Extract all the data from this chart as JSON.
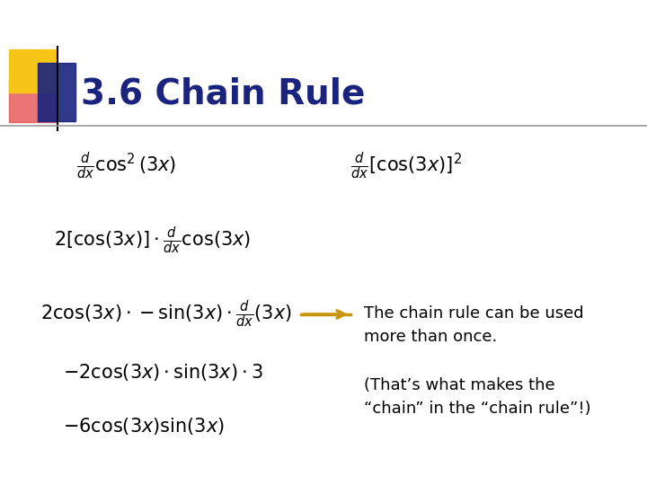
{
  "title": "3.6 Chain Rule",
  "title_color": "#1a237e",
  "title_fontsize": 28,
  "bg_color": "#ffffff",
  "eq1": "$\\frac{d}{dx}\\cos^2(3x)$",
  "eq2": "$\\frac{d}{dx}\\left[\\cos(3x)\\right]^2$",
  "eq3": "$2\\left[\\cos(3x)\\right]\\cdot\\frac{d}{dx}\\cos(3x)$",
  "eq4": "$2\\cos(3x)\\cdot-\\sin(3x)\\cdot\\frac{d}{dx}(3x)$",
  "eq5": "$-2\\cos(3x)\\cdot\\sin(3x)\\cdot 3$",
  "eq6": "$-6\\cos(3x)\\sin(3x)$",
  "annotation1": "The chain rule can be used\nmore than once.",
  "annotation2": "(That’s what makes the\n“chain” in the “chain rule”!)",
  "arrow_color": "#c8960c",
  "text_color": "#000000",
  "eq_fontsize": 15,
  "annot_fontsize": 13,
  "yellow_color": "#f5c518",
  "red_color": "#e85c5c",
  "blue_color": "#1a237e",
  "line_color": "#999999"
}
